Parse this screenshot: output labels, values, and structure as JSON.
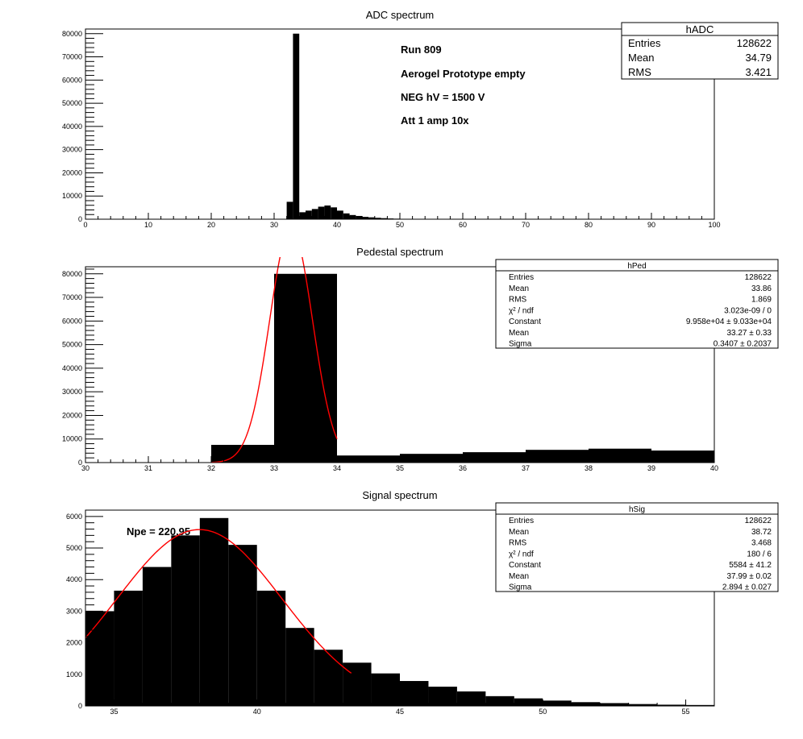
{
  "chart_data": [
    {
      "type": "bar",
      "title": "ADC spectrum",
      "hist_name": "hADC",
      "xlim": [
        0,
        100
      ],
      "ylim": [
        0,
        82000
      ],
      "x_ticks": [
        0,
        10,
        20,
        30,
        40,
        50,
        60,
        70,
        80,
        90,
        100
      ],
      "y_ticks": [
        0,
        10000,
        20000,
        30000,
        40000,
        50000,
        60000,
        70000,
        80000
      ],
      "bin_width": 1,
      "bins": [
        {
          "x": 32,
          "y": 7500
        },
        {
          "x": 33,
          "y": 80000
        },
        {
          "x": 34,
          "y": 3000
        },
        {
          "x": 35,
          "y": 3700
        },
        {
          "x": 36,
          "y": 4400
        },
        {
          "x": 37,
          "y": 5400
        },
        {
          "x": 38,
          "y": 5900
        },
        {
          "x": 39,
          "y": 5100
        },
        {
          "x": 40,
          "y": 3700
        },
        {
          "x": 41,
          "y": 2500
        },
        {
          "x": 42,
          "y": 1800
        },
        {
          "x": 43,
          "y": 1400
        },
        {
          "x": 44,
          "y": 1000
        },
        {
          "x": 45,
          "y": 800
        },
        {
          "x": 46,
          "y": 600
        },
        {
          "x": 47,
          "y": 450
        },
        {
          "x": 48,
          "y": 320
        },
        {
          "x": 49,
          "y": 230
        },
        {
          "x": 50,
          "y": 170
        },
        {
          "x": 51,
          "y": 120
        },
        {
          "x": 52,
          "y": 90
        },
        {
          "x": 53,
          "y": 60
        },
        {
          "x": 54,
          "y": 40
        }
      ],
      "annotations": [
        "Run  809",
        "Aerogel Prototype empty",
        "NEG hV = 1500 V",
        "Att 1 amp 10x"
      ],
      "stats": [
        {
          "label": "Entries",
          "value": "128622"
        },
        {
          "label": "Mean",
          "value": "34.79"
        },
        {
          "label": "RMS",
          "value": "3.421"
        }
      ]
    },
    {
      "type": "bar",
      "title": "Pedestal spectrum",
      "hist_name": "hPed",
      "xlim": [
        30,
        40
      ],
      "ylim": [
        0,
        83000
      ],
      "x_ticks": [
        30,
        31,
        32,
        33,
        34,
        35,
        36,
        37,
        38,
        39,
        40
      ],
      "y_ticks": [
        0,
        10000,
        20000,
        30000,
        40000,
        50000,
        60000,
        70000,
        80000
      ],
      "bin_width": 1,
      "bins": [
        {
          "x": 32,
          "y": 7500
        },
        {
          "x": 33,
          "y": 80000
        },
        {
          "x": 34,
          "y": 3000
        },
        {
          "x": 35,
          "y": 3700
        },
        {
          "x": 36,
          "y": 4400
        },
        {
          "x": 37,
          "y": 5400
        },
        {
          "x": 38,
          "y": 5900
        },
        {
          "x": 39,
          "y": 5100
        }
      ],
      "fit": {
        "function": "gaus",
        "constant": 99580,
        "mean": 33.27,
        "sigma": 0.3407,
        "xrange": [
          32,
          34
        ],
        "color": "#ff0000"
      },
      "stats": [
        {
          "label": "Entries",
          "value": "128622"
        },
        {
          "label": "Mean",
          "value": "33.86"
        },
        {
          "label": "RMS",
          "value": "1.869"
        },
        {
          "label": "χ² / ndf",
          "value": "3.023e-09 / 0"
        },
        {
          "label": "Constant",
          "value": "9.958e+04 ± 9.033e+04"
        },
        {
          "label": "Mean",
          "value": "33.27 ± 0.33"
        },
        {
          "label": "Sigma",
          "value": "0.3407 ± 0.2037"
        }
      ]
    },
    {
      "type": "bar",
      "title": "Signal spectrum",
      "hist_name": "hSig",
      "xlim": [
        34,
        56
      ],
      "ylim": [
        0,
        6200
      ],
      "x_ticks": [
        35,
        40,
        45,
        50,
        55
      ],
      "y_ticks": [
        0,
        1000,
        2000,
        3000,
        4000,
        5000,
        6000
      ],
      "bin_width": 1,
      "bins": [
        {
          "x": 34,
          "y": 3000
        },
        {
          "x": 35,
          "y": 3650
        },
        {
          "x": 36,
          "y": 4400
        },
        {
          "x": 37,
          "y": 5400
        },
        {
          "x": 38,
          "y": 5950
        },
        {
          "x": 39,
          "y": 5100
        },
        {
          "x": 40,
          "y": 3650
        },
        {
          "x": 41,
          "y": 2470
        },
        {
          "x": 42,
          "y": 1780
        },
        {
          "x": 43,
          "y": 1370
        },
        {
          "x": 44,
          "y": 1030
        },
        {
          "x": 45,
          "y": 790
        },
        {
          "x": 46,
          "y": 610
        },
        {
          "x": 47,
          "y": 460
        },
        {
          "x": 48,
          "y": 310
        },
        {
          "x": 49,
          "y": 240
        },
        {
          "x": 50,
          "y": 170
        },
        {
          "x": 51,
          "y": 120
        },
        {
          "x": 52,
          "y": 90
        },
        {
          "x": 53,
          "y": 60
        },
        {
          "x": 54,
          "y": 40
        },
        {
          "x": 55,
          "y": 30
        }
      ],
      "fit": {
        "function": "gaus",
        "constant": 5584,
        "mean": 37.99,
        "sigma": 2.894,
        "xrange": [
          34,
          43.3
        ],
        "color": "#ff0000"
      },
      "annotations": [
        "Npe = 220.95"
      ],
      "stats": [
        {
          "label": "Entries",
          "value": "128622"
        },
        {
          "label": "Mean",
          "value": "38.72"
        },
        {
          "label": "RMS",
          "value": "3.468"
        },
        {
          "label": "χ² / ndf",
          "value": "180 / 6"
        },
        {
          "label": "Constant",
          "value": "5584 ± 41.2"
        },
        {
          "label": "Mean",
          "value": "37.99 ± 0.02"
        },
        {
          "label": "Sigma",
          "value": "2.894 ± 0.027"
        }
      ]
    }
  ]
}
